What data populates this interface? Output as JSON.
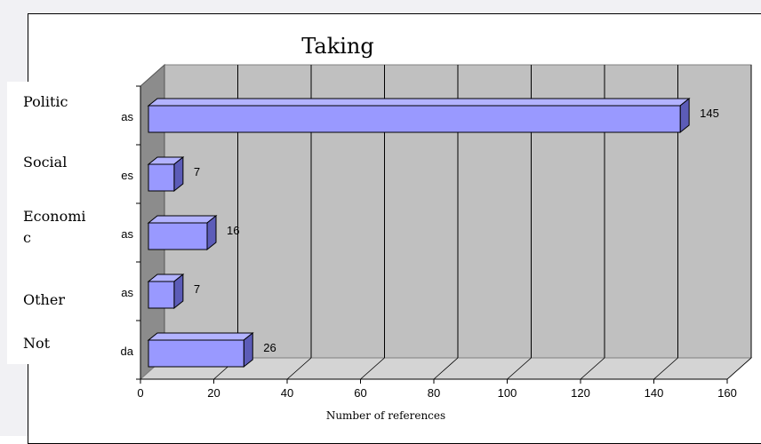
{
  "chart_data": {
    "type": "bar",
    "orientation": "horizontal",
    "title": "Taking",
    "xlabel": "Number of references",
    "ylabel": "",
    "xlim": [
      0,
      160
    ],
    "xticks": [
      "0",
      "20",
      "40",
      "60",
      "80",
      "100",
      "120",
      "140",
      "160"
    ],
    "categories": [
      {
        "label": "Politic",
        "label_line2": "",
        "clipped": "as",
        "value": 145,
        "value_label": "145"
      },
      {
        "label": "Social",
        "label_line2": "",
        "clipped": "es",
        "value": 7,
        "value_label": "7"
      },
      {
        "label": "Economi",
        "label_line2": "c",
        "clipped": "as",
        "value": 16,
        "value_label": "16"
      },
      {
        "label": "Other",
        "label_line2": "",
        "clipped": "as",
        "value": 7,
        "value_label": "7"
      },
      {
        "label": "Not",
        "label_line2": "",
        "clipped": "da",
        "value": 26,
        "value_label": "26"
      }
    ],
    "grid": true,
    "style": "3d",
    "colors": {
      "bar_front": "#9999ff",
      "bar_top": "#b3b3ff",
      "bar_side": "#5c5cb8",
      "plot_wall": "#c0c0c0",
      "floor": "#d4d4d4",
      "side_wall": "#8c8c8c"
    }
  }
}
